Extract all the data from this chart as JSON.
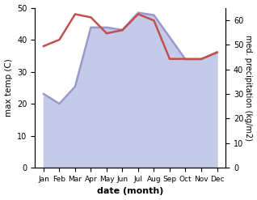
{
  "months": [
    "Jan",
    "Feb",
    "Mar",
    "Apr",
    "May",
    "Jun",
    "Jul",
    "Aug",
    "Sep",
    "Oct",
    "Nov",
    "Dec"
  ],
  "max_temp": [
    38,
    40,
    48,
    47,
    42,
    43,
    48,
    46,
    34,
    34,
    34,
    36
  ],
  "precipitation": [
    30,
    26,
    33,
    57,
    57,
    56,
    63,
    62,
    53,
    44,
    44,
    47
  ],
  "temp_color": "#c0504d",
  "precip_fill_color": "#c5cae9",
  "precip_line_color": "#9999cc",
  "ylim_temp": [
    0,
    50
  ],
  "ylim_precip": [
    0,
    65
  ],
  "yticks_temp": [
    0,
    10,
    20,
    30,
    40,
    50
  ],
  "yticks_precip": [
    0,
    10,
    20,
    30,
    40,
    50,
    60
  ],
  "xlabel": "date (month)",
  "ylabel_left": "max temp (C)",
  "ylabel_right": "med. precipitation (kg/m2)",
  "bg_color": "#ffffff",
  "temp_linewidth": 1.8,
  "precip_linewidth": 1.8
}
